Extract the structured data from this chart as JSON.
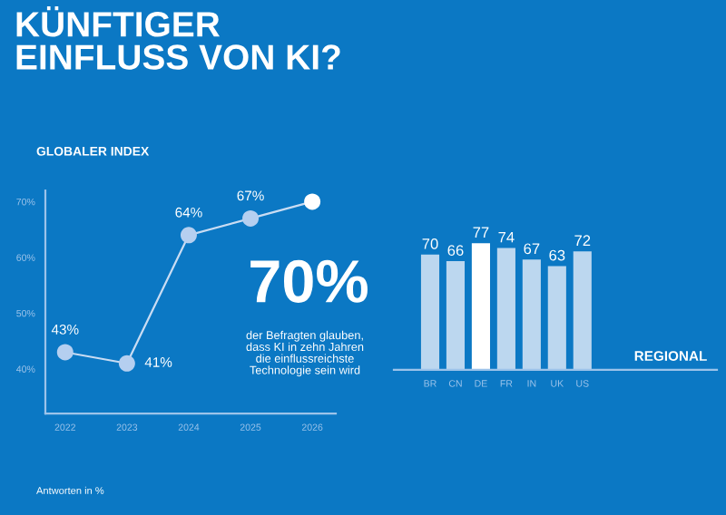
{
  "chart_data": [
    {
      "type": "line",
      "title": "KÜNFTIGER\nEINFLUSS VON KI?",
      "subtitle": "GLOBALER INDEX",
      "categories": [
        "2022",
        "2023",
        "2024",
        "2025",
        "2026"
      ],
      "series": [
        {
          "color": "#c9dcf3",
          "values": [
            43,
            41,
            64,
            67,
            70
          ],
          "colors": [
            "#b5cff0",
            "#b5cff0",
            "#b5cff0",
            "#b5cff0",
            "#ffffff"
          ],
          "value_labels": [
            "43%",
            "41%",
            "64%",
            "67%",
            null
          ]
        }
      ],
      "ylim": [
        32,
        72
      ],
      "yticks": [
        {
          "value": 40,
          "label": "40%"
        },
        {
          "value": 50,
          "label": "50%"
        },
        {
          "value": 60,
          "label": "60%"
        },
        {
          "value": 70,
          "label": "70%"
        }
      ],
      "marker": "circle",
      "line_style": "solid",
      "annotations": [
        "70%",
        "der Befragten glauben,\ndass KI in zehn Jahren\ndie einflussreichste\nTechnologie sein wird",
        "Antworten in %"
      ]
    },
    {
      "type": "bar",
      "xlabel": "REGIONAL",
      "categories": [
        "BR",
        "CN",
        "DE",
        "FR",
        "IN",
        "UK",
        "US"
      ],
      "values": [
        70,
        66,
        77,
        74,
        67,
        63,
        72
      ],
      "colors": [
        "#bcd7ef",
        "#bcd7ef",
        "#ffffff",
        "#bcd7ef",
        "#bcd7ef",
        "#bcd7ef",
        "#bcd7ef"
      ],
      "data_labels": true,
      "tick_labels": "x"
    }
  ]
}
